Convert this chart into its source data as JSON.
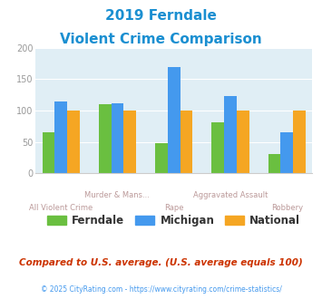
{
  "title_line1": "2019 Ferndale",
  "title_line2": "Violent Crime Comparison",
  "title_color": "#1a8fd1",
  "categories": [
    "All Violent Crime",
    "Murder & Mans...",
    "Rape",
    "Aggravated Assault",
    "Robbery"
  ],
  "ferndale": [
    65,
    110,
    48,
    82,
    31
  ],
  "michigan": [
    115,
    111,
    170,
    123,
    65
  ],
  "national": [
    100,
    100,
    100,
    100,
    100
  ],
  "ferndale_color": "#6abf40",
  "michigan_color": "#4499ee",
  "national_color": "#f5a623",
  "ylim": [
    0,
    200
  ],
  "yticks": [
    0,
    50,
    100,
    150,
    200
  ],
  "plot_bg": "#e0eef5",
  "legend_labels": [
    "Ferndale",
    "Michigan",
    "National"
  ],
  "footer_text": "Compared to U.S. average. (U.S. average equals 100)",
  "footer_color": "#cc3300",
  "credit_text": "© 2025 CityRating.com - https://www.cityrating.com/crime-statistics/",
  "credit_color": "#4499ee",
  "bar_width": 0.22,
  "group_positions": [
    0,
    1,
    2,
    3,
    4
  ],
  "top_labels": [
    "",
    "Murder & Mans...",
    "",
    "Aggravated Assault",
    ""
  ],
  "bottom_labels": [
    "All Violent Crime",
    "",
    "Rape",
    "",
    "Robbery"
  ],
  "label_color": "#bb9999"
}
